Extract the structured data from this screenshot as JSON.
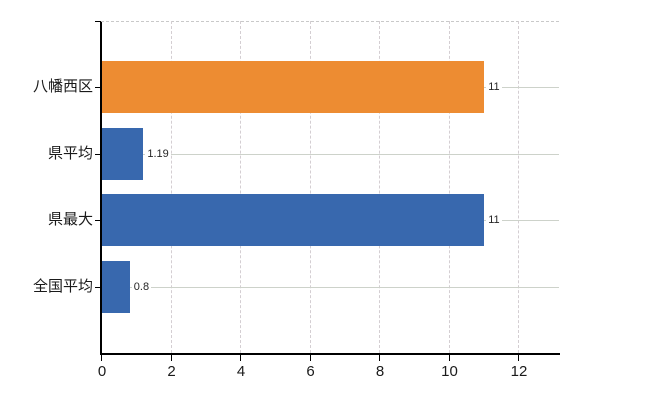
{
  "chart_data": {
    "type": "bar",
    "orientation": "horizontal",
    "categories": [
      "八幡西区",
      "県平均",
      "県最大",
      "全国平均"
    ],
    "values": [
      11,
      1.19,
      11,
      0.8
    ],
    "value_labels": [
      "11",
      "1.19",
      "11",
      "0.8"
    ],
    "bar_colors": [
      "#ED8C32",
      "#3868AE",
      "#3868AE",
      "#3868AE"
    ],
    "xticks": [
      0,
      2,
      4,
      6,
      8,
      10,
      12
    ],
    "xlim": [
      0,
      13.2
    ],
    "grid": true,
    "legend": false,
    "gridline_horizontal": "solid",
    "gridline_vertical": "dashed"
  },
  "colors": {
    "axis": "#000000",
    "grid_horizontal": "#cdd2ca",
    "grid_vertical": "#d4ced2",
    "bar_orange": "#ED8C32",
    "bar_blue": "#3868AE",
    "text": "#1a1a1a",
    "background": "#ffffff"
  }
}
